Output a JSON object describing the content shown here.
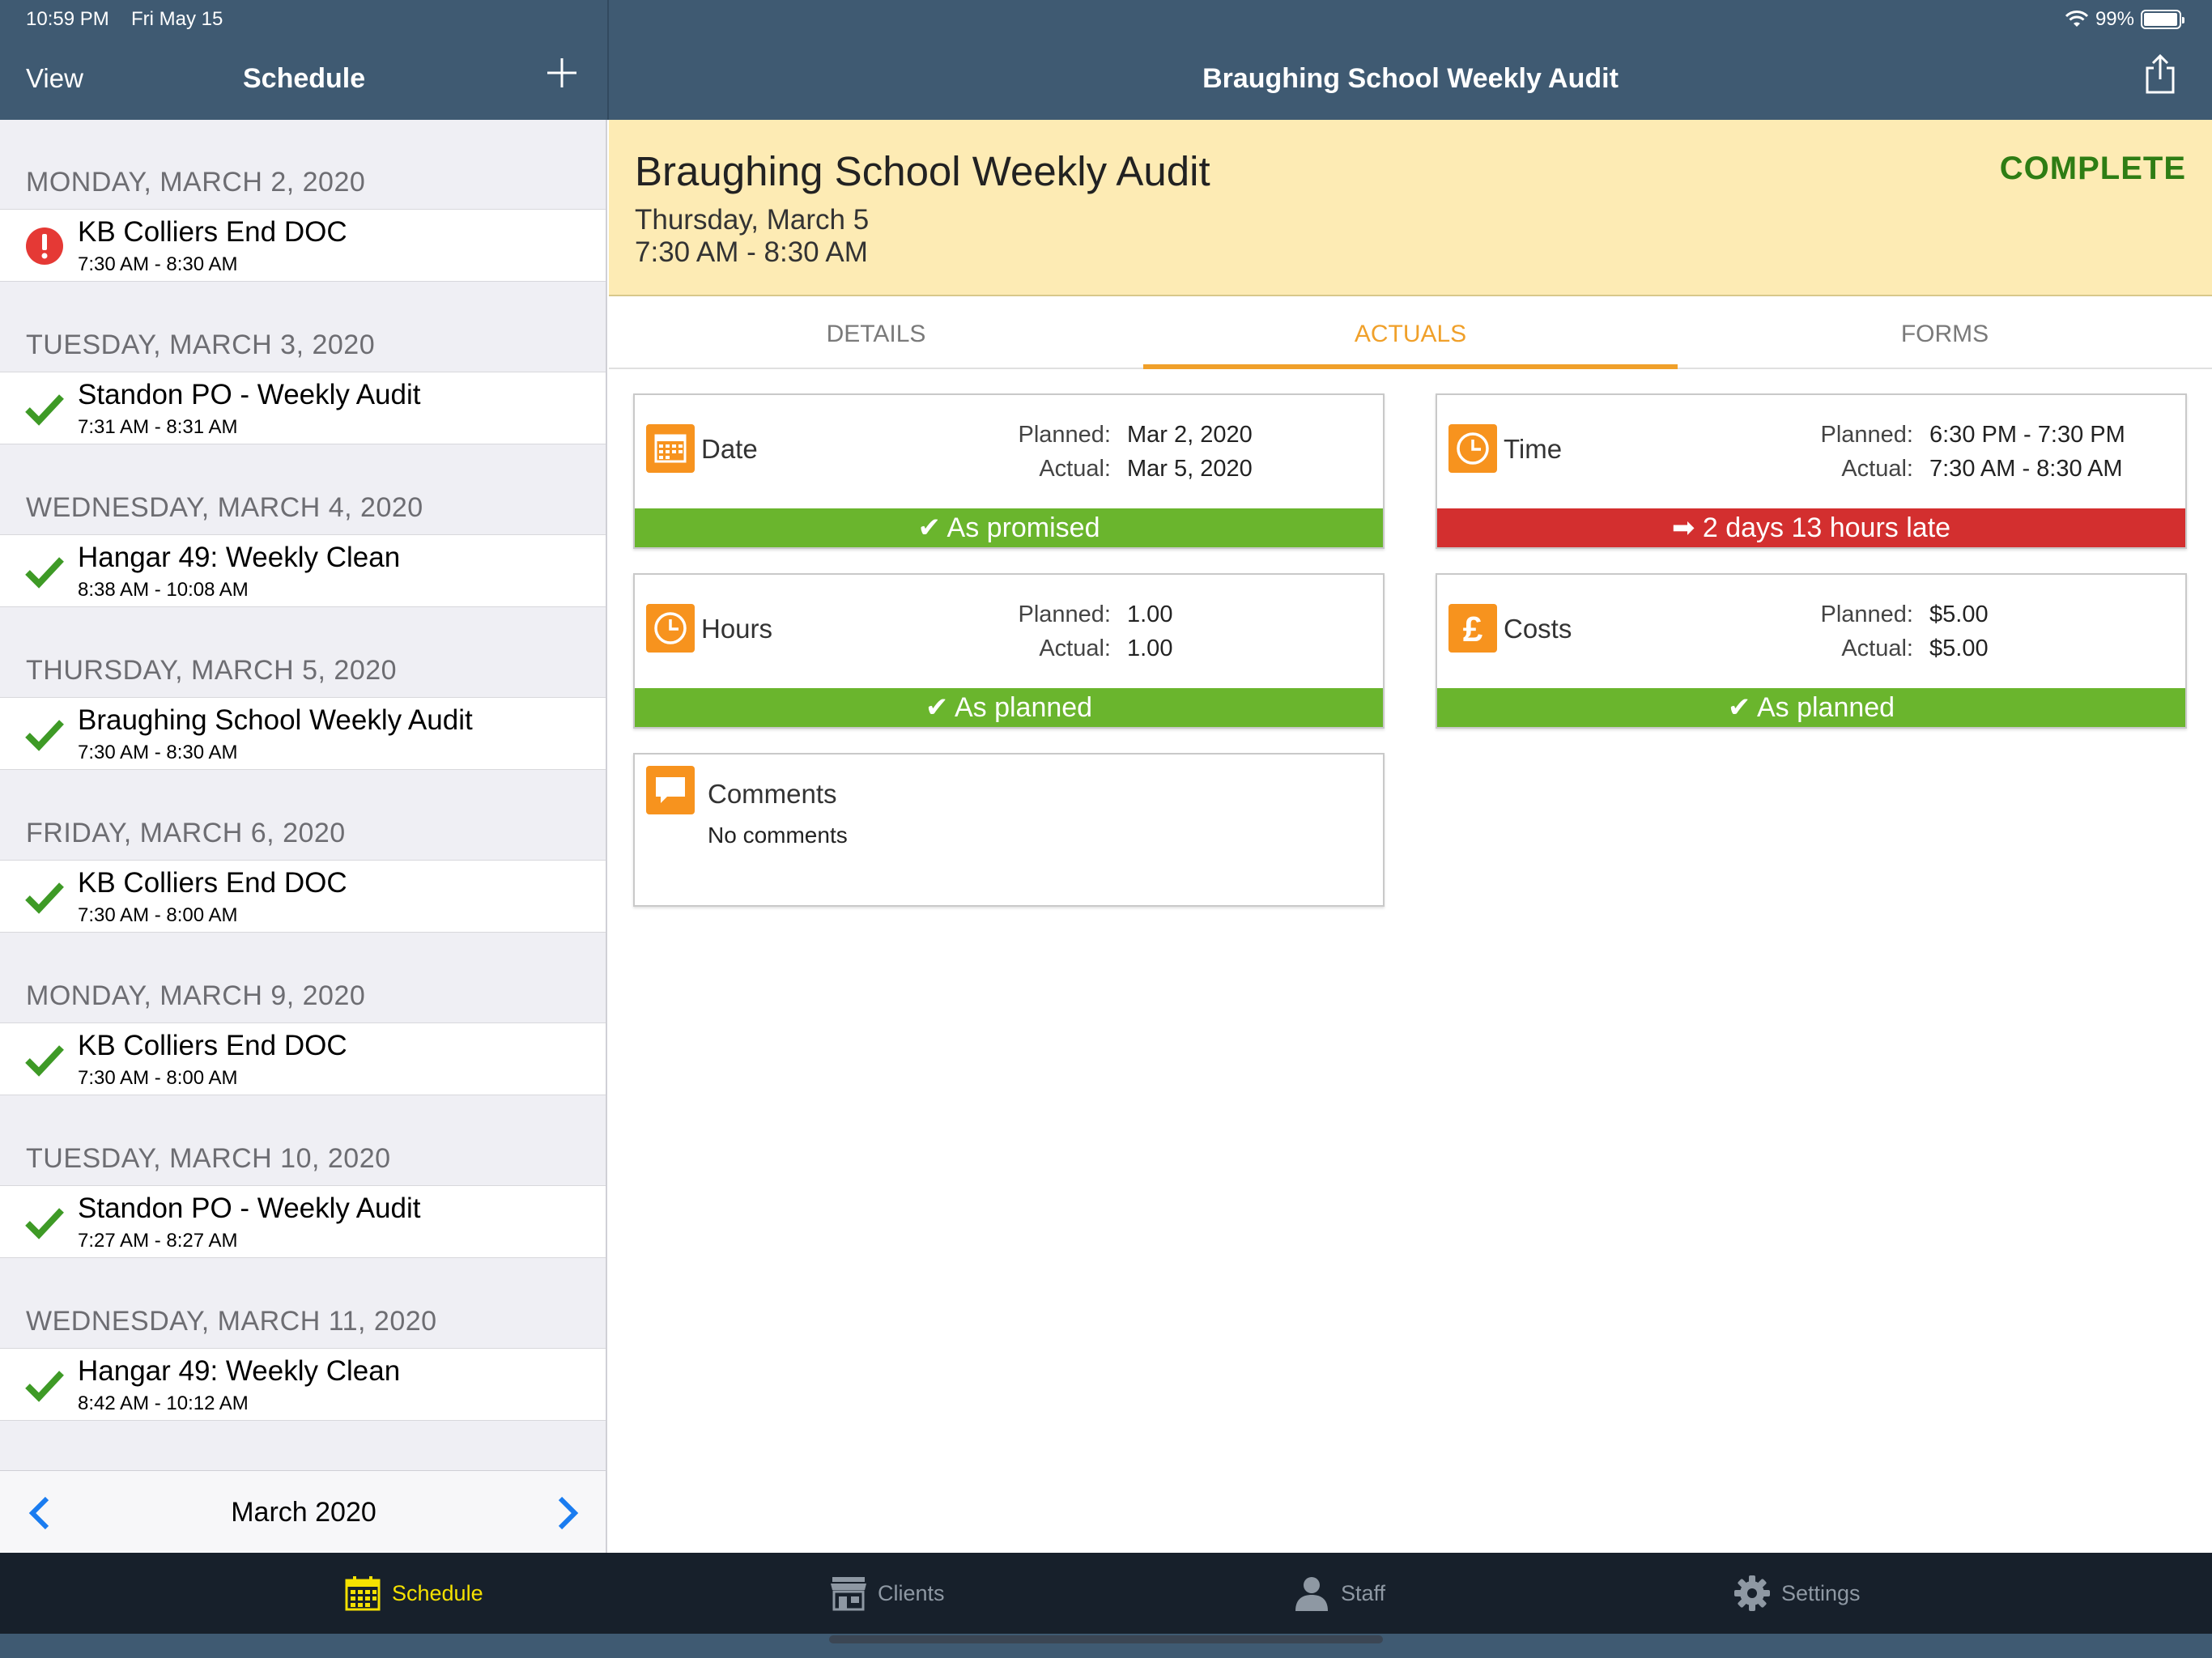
{
  "status_bar": {
    "time": "10:59 PM",
    "date": "Fri May 15",
    "battery": "99%"
  },
  "nav": {
    "view_label": "View",
    "schedule_title": "Schedule",
    "detail_title": "Braughing School Weekly Audit"
  },
  "schedule": {
    "days": [
      {
        "header": "MONDAY, MARCH 2, 2020",
        "title": "KB Colliers End DOC",
        "time": "7:30 AM - 8:30 AM",
        "status": "alert"
      },
      {
        "header": "TUESDAY, MARCH 3, 2020",
        "title": "Standon PO - Weekly Audit",
        "time": "7:31 AM - 8:31 AM",
        "status": "done"
      },
      {
        "header": "WEDNESDAY, MARCH 4, 2020",
        "title": "Hangar 49: Weekly Clean",
        "time": "8:38 AM - 10:08 AM",
        "status": "done"
      },
      {
        "header": "THURSDAY, MARCH 5, 2020",
        "title": "Braughing School Weekly Audit",
        "time": "7:30 AM - 8:30 AM",
        "status": "done"
      },
      {
        "header": "FRIDAY, MARCH 6, 2020",
        "title": "KB Colliers End DOC",
        "time": "7:30 AM - 8:00 AM",
        "status": "done"
      },
      {
        "header": "MONDAY, MARCH 9, 2020",
        "title": "KB Colliers End DOC",
        "time": "7:30 AM - 8:00 AM",
        "status": "done"
      },
      {
        "header": "TUESDAY, MARCH 10, 2020",
        "title": "Standon PO - Weekly Audit",
        "time": "7:27 AM - 8:27 AM",
        "status": "done"
      },
      {
        "header": "WEDNESDAY, MARCH 11, 2020",
        "title": "Hangar 49: Weekly Clean",
        "time": "8:42 AM - 10:12 AM",
        "status": "done"
      }
    ],
    "month_label": "March 2020"
  },
  "job": {
    "title": "Braughing School Weekly Audit",
    "date": "Thursday, March 5",
    "time": "7:30 AM - 8:30 AM",
    "status": "COMPLETE"
  },
  "tabs": [
    {
      "label": "DETAILS",
      "active": false
    },
    {
      "label": "ACTUALS",
      "active": true
    },
    {
      "label": "FORMS",
      "active": false
    }
  ],
  "actuals": {
    "date": {
      "label": "Date",
      "planned_key": "Planned:",
      "planned": "Mar 2, 2020",
      "actual_key": "Actual:",
      "actual": "Mar 5, 2020",
      "band": "✔ As promised"
    },
    "time": {
      "label": "Time",
      "planned_key": "Planned:",
      "planned": "6:30 PM - 7:30 PM",
      "actual_key": "Actual:",
      "actual": "7:30 AM - 8:30 AM",
      "band": "➡ 2 days 13 hours late"
    },
    "hours": {
      "label": "Hours",
      "planned_key": "Planned:",
      "planned": "1.00",
      "actual_key": "Actual:",
      "actual": "1.00",
      "band": "✔ As planned"
    },
    "costs": {
      "label": "Costs",
      "planned_key": "Planned:",
      "planned": "$5.00",
      "actual_key": "Actual:",
      "actual": "$5.00",
      "band": "✔ As planned"
    },
    "comments": {
      "label": "Comments",
      "text": "No comments"
    }
  },
  "tab_bar": {
    "items": [
      {
        "label": "Schedule",
        "icon": "calendar-icon",
        "active": true
      },
      {
        "label": "Clients",
        "icon": "store-icon",
        "active": false
      },
      {
        "label": "Staff",
        "icon": "person-icon",
        "active": false
      },
      {
        "label": "Settings",
        "icon": "gear-icon",
        "active": false
      }
    ]
  },
  "colors": {
    "nav": "#3f5a72",
    "accent": "#f0a02a",
    "success": "#6ab52d",
    "danger": "#d32f2f",
    "complete": "#2e7d14",
    "tab_active": "#f5e100"
  }
}
